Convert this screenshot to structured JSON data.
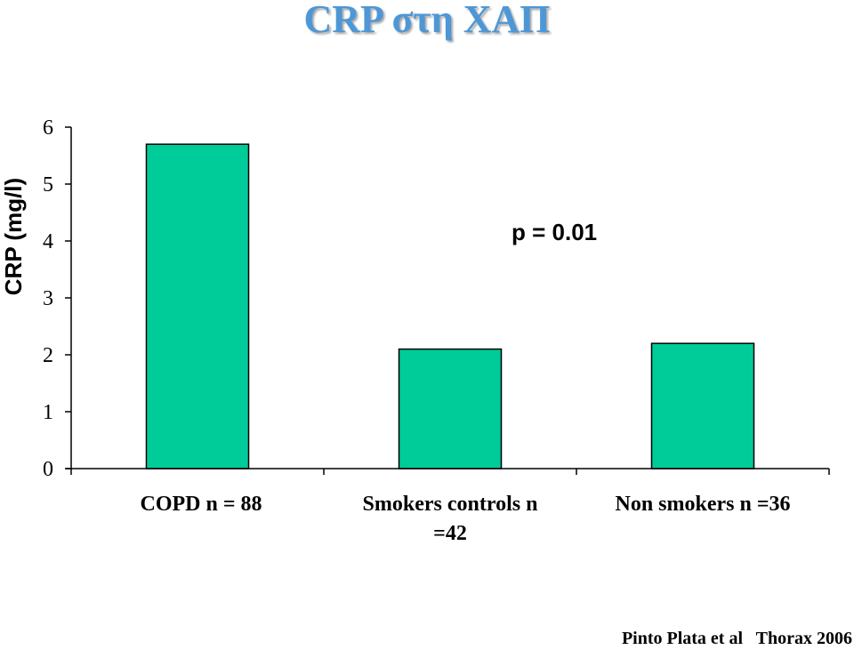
{
  "title": "CRP στη ΧΑΠ",
  "citation": "Pinto Plata et al   Thorax 2006",
  "chart_data": {
    "type": "bar",
    "categories": [
      [
        "COPD n = 88"
      ],
      [
        "Smokers controls n",
        "=42"
      ],
      [
        "Non smokers n =36"
      ]
    ],
    "values": [
      5.7,
      2.1,
      2.2
    ],
    "title": "CRP στη ΧΑΠ",
    "xlabel": "",
    "ylabel": "CRP (mg/l)",
    "ylim": [
      0,
      6
    ],
    "yticks": [
      "0",
      "1",
      "2",
      "3",
      "4",
      "5",
      "6"
    ],
    "annotation": "p = 0.01",
    "grid": false,
    "bar_color": "#00cc99",
    "bar_edge_color": "#000000"
  }
}
